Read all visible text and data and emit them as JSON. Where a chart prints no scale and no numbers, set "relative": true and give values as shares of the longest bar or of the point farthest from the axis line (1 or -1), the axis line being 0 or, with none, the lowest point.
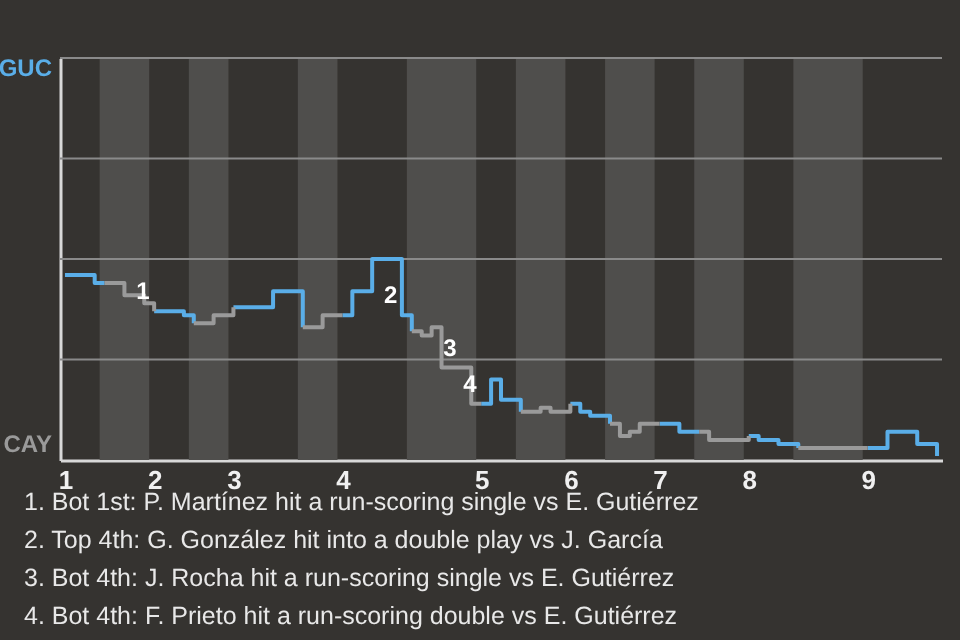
{
  "chart_data": {
    "type": "step",
    "relative": true,
    "categories": [
      "1",
      null,
      null,
      null,
      null,
      null,
      null,
      null,
      null,
      "2",
      null,
      null,
      null,
      null,
      null,
      null,
      null,
      "3",
      null,
      null,
      null,
      null,
      null,
      null,
      null,
      null,
      null,
      null,
      "4",
      null,
      null,
      null,
      null,
      null,
      null,
      null,
      null,
      null,
      null,
      null,
      null,
      null,
      "5",
      null,
      null,
      null,
      null,
      null,
      null,
      null,
      null,
      "6",
      null,
      null,
      null,
      null,
      null,
      null,
      null,
      null,
      "7",
      null,
      null,
      null,
      null,
      null,
      null,
      null,
      null,
      "8",
      null,
      null,
      null,
      null,
      null,
      null,
      null,
      null,
      null,
      null,
      null,
      "9",
      null,
      null,
      null,
      null,
      null,
      null,
      null
    ],
    "marker": "none",
    "line_style": "solid",
    "series": [
      {
        "color": "#5aaee8",
        "values": [
          0.92,
          0.92,
          0.92,
          0.88,
          0.88,
          null,
          null,
          null,
          null,
          0.74,
          0.74,
          0.74,
          0.72,
          0.68,
          null,
          null,
          null,
          0.76,
          0.76,
          0.76,
          0.76,
          0.84,
          0.84,
          0.84,
          0.66,
          null,
          null,
          null,
          0.72,
          0.84,
          0.84,
          1.0,
          1.0,
          1.0,
          0.72,
          0.64,
          null,
          null,
          null,
          null,
          null,
          null,
          0.28,
          0.4,
          0.3,
          0.3,
          0.24,
          null,
          null,
          null,
          null,
          0.28,
          0.24,
          0.22,
          0.22,
          0.18,
          null,
          null,
          null,
          null,
          0.18,
          0.18,
          0.14,
          0.14,
          0.14,
          null,
          null,
          null,
          null,
          0.12,
          0.1,
          0.1,
          0.08,
          0.08,
          0.06,
          null,
          null,
          null,
          null,
          null,
          null,
          0.06,
          0.06,
          0.14,
          0.14,
          0.14,
          0.08,
          0.08,
          0.02
        ]
      },
      {
        "color": "#9a9a9a",
        "values": [
          null,
          null,
          null,
          null,
          0.88,
          0.88,
          0.82,
          0.82,
          0.78,
          0.74,
          null,
          null,
          null,
          0.68,
          0.68,
          0.72,
          0.72,
          0.76,
          null,
          null,
          null,
          null,
          null,
          null,
          0.66,
          0.66,
          0.72,
          0.72,
          0.72,
          null,
          null,
          null,
          null,
          null,
          null,
          0.64,
          0.62,
          0.66,
          0.46,
          0.46,
          0.46,
          0.28,
          0.28,
          null,
          null,
          null,
          0.24,
          0.24,
          0.26,
          0.24,
          0.24,
          0.28,
          null,
          null,
          null,
          0.18,
          0.12,
          0.14,
          0.18,
          0.18,
          0.18,
          null,
          null,
          null,
          0.14,
          0.1,
          0.1,
          0.1,
          0.1,
          0.12,
          null,
          null,
          null,
          null,
          0.06,
          0.06,
          0.06,
          0.06,
          0.06,
          0.06,
          0.06,
          0.06,
          null,
          null,
          null,
          null,
          null,
          null,
          null
        ]
      }
    ],
    "ref_lines": [
      {
        "axis": "y",
        "value": 0.5,
        "color": "#8a8a8a"
      },
      {
        "axis": "y",
        "value": 1,
        "color": "#8a8a8a"
      },
      {
        "axis": "y",
        "value": 1.5,
        "color": "#8a8a8a"
      },
      {
        "axis": "y",
        "value": 2,
        "color": "#8a8a8a"
      }
    ],
    "annotations": [
      "GUC",
      "CAY",
      {
        "text": "1",
        "x": "2",
        "y": 0.74
      },
      {
        "text": "2",
        "y": 0.72
      },
      {
        "text": "3",
        "y": 0.46
      },
      {
        "text": "4",
        "x": "5",
        "y": 0.28
      },
      "1. Bot 1st: P. Martínez hit a run-scoring single vs E. Gutiérrez",
      "2. Top 4th: G. González hit into a double play vs J. García",
      "3. Bot 4th: J. Rocha hit a run-scoring single vs E. Gutiérrez",
      "4. Bot 4th: F. Prieto hit a run-scoring double vs E. Gutiérrez"
    ]
  }
}
